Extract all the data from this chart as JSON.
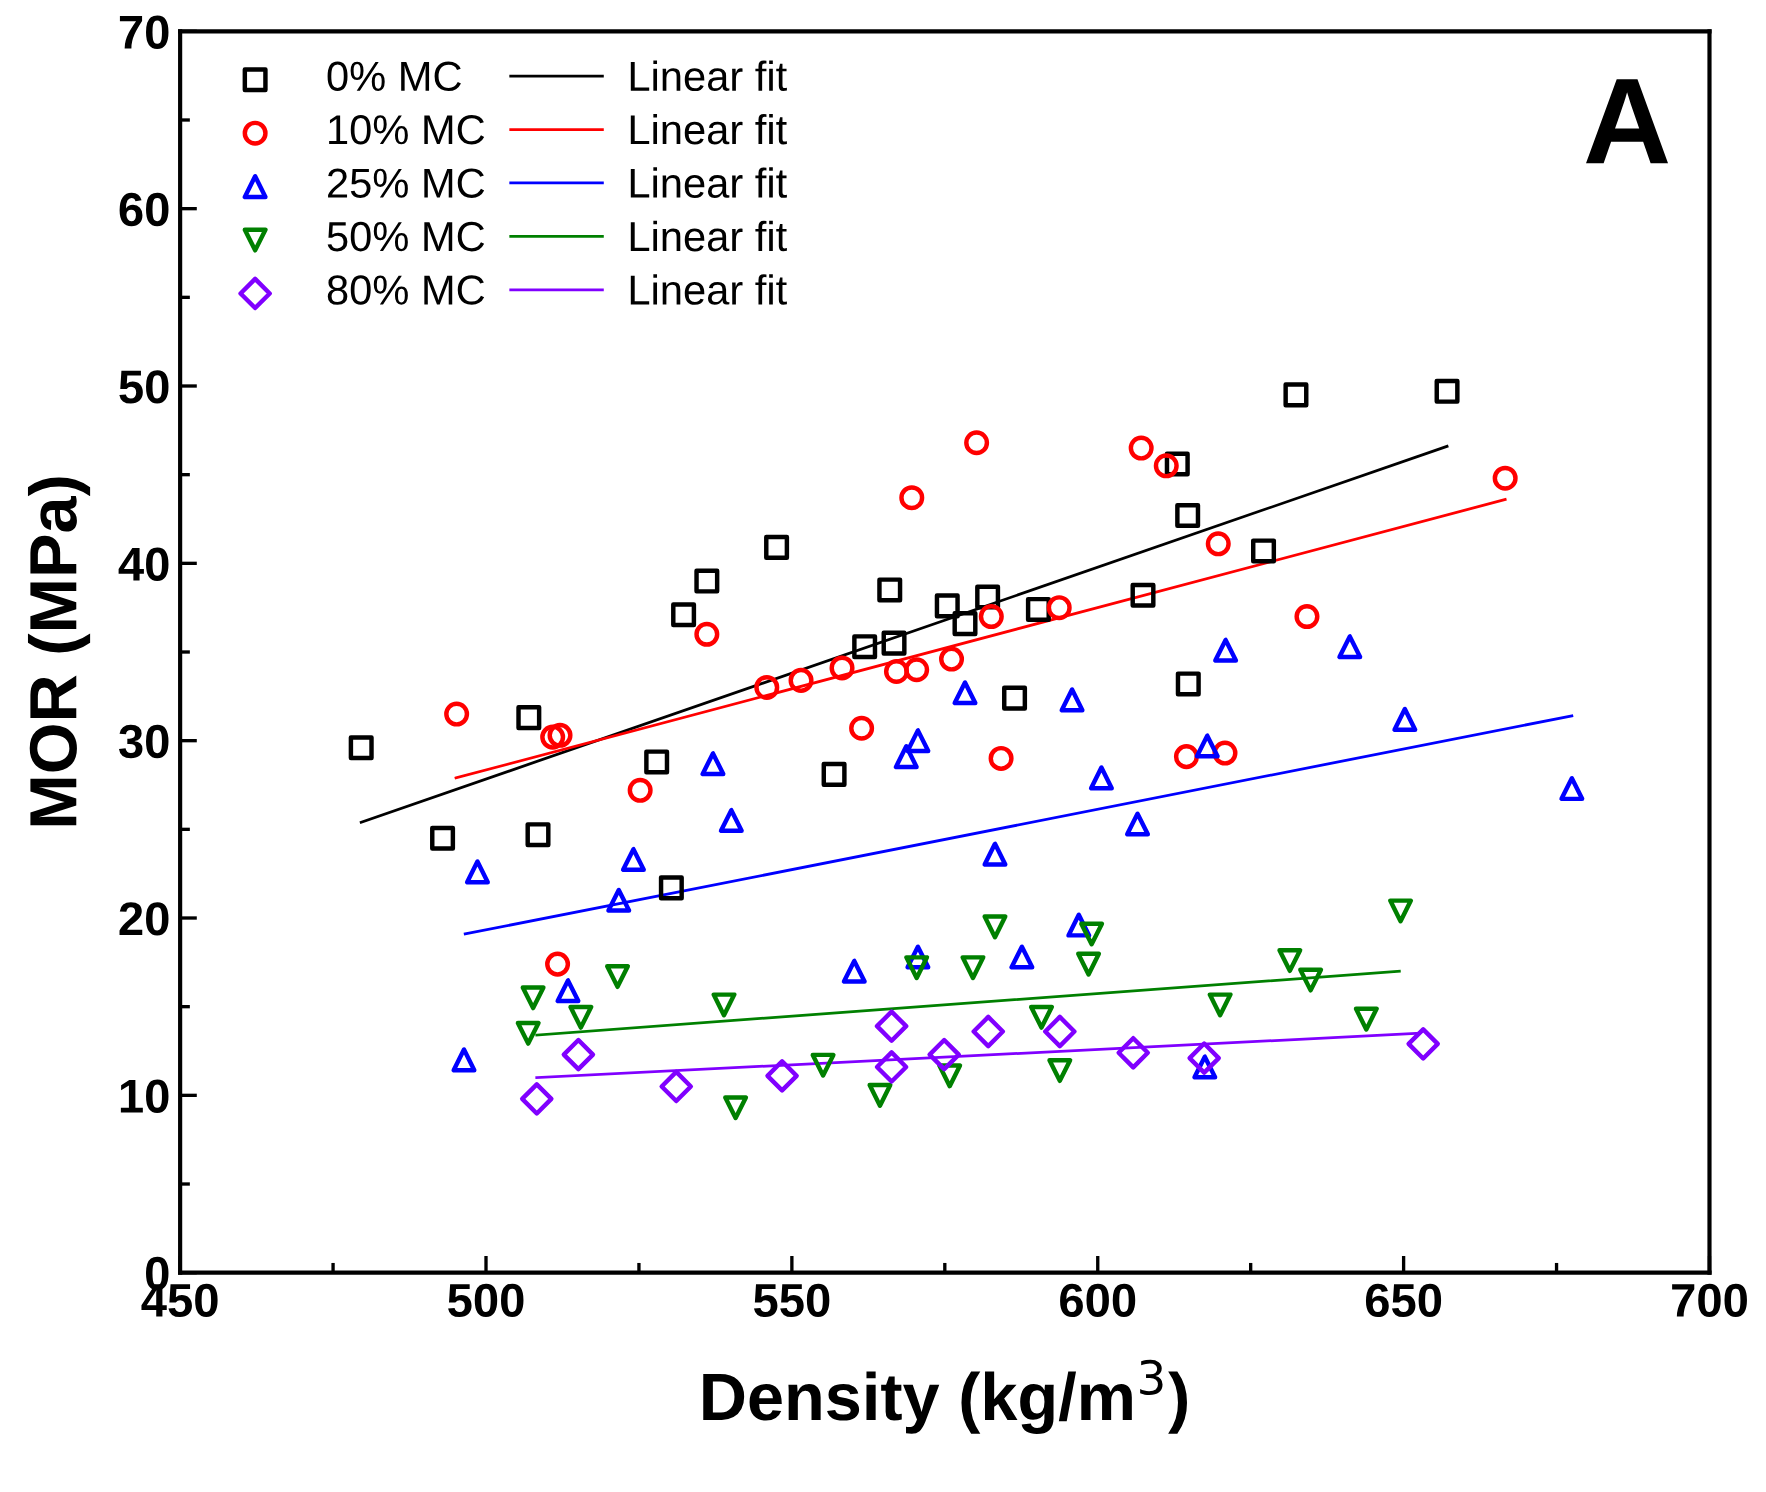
{
  "chart_data": {
    "type": "scatter",
    "xlabel": "Density (kg/m$^{3}$)",
    "ylabel": "MOR (MPa)",
    "annotations": [
      "A"
    ],
    "xlim": [
      450,
      700
    ],
    "xticks": [
      450,
      500,
      550,
      600,
      650,
      700
    ],
    "ylim": [
      0,
      70
    ],
    "yticks": [
      0,
      10,
      20,
      30,
      40,
      50,
      60,
      70
    ],
    "grid": false,
    "legend": "top left",
    "series": [
      {
        "name": "0% MC",
        "marker": "square",
        "color": "#000000",
        "x": [
          479.6,
          492.9,
          508.5,
          507.0,
          527.9,
          530.3,
          532.3,
          536.1,
          547.5,
          556.9,
          566.0,
          561.9,
          566.7,
          575.4,
          578.3,
          582.0,
          590.3,
          586.4,
          607.4,
          613.0,
          614.7,
          614.8,
          627.1,
          632.4,
          657.1
        ],
        "values": [
          29.6,
          24.5,
          24.7,
          31.3,
          28.8,
          21.7,
          37.1,
          39.0,
          40.9,
          28.1,
          38.5,
          35.3,
          35.5,
          37.6,
          36.6,
          38.1,
          37.4,
          32.4,
          38.2,
          45.6,
          42.7,
          33.2,
          40.7,
          49.5,
          49.7
        ]
      },
      {
        "name": "10% MC",
        "marker": "circle",
        "color": "#ff0000",
        "x": [
          495.2,
          510.9,
          512.1,
          536.1,
          525.2,
          545.9,
          551.5,
          558.2,
          561.4,
          567.1,
          570.4,
          569.6,
          580.2,
          576.1,
          582.6,
          593.7,
          584.2,
          607.1,
          611.2,
          619.7,
          634.2,
          614.5,
          620.8,
          666.6,
          511.7
        ],
        "values": [
          31.5,
          30.2,
          30.3,
          36.0,
          27.2,
          33.0,
          33.4,
          34.1,
          30.7,
          33.9,
          34.0,
          43.7,
          46.8,
          34.6,
          37.0,
          37.5,
          29.0,
          46.5,
          45.5,
          41.1,
          37.0,
          29.1,
          29.3,
          44.8,
          17.4
        ]
      },
      {
        "name": "25% MC",
        "marker": "triangle",
        "color": "#0000ff",
        "x": [
          498.6,
          524.1,
          521.7,
          537.1,
          540.1,
          568.7,
          570.6,
          578.3,
          595.8,
          600.6,
          606.5,
          583.2,
          620.9,
          641.2,
          650.2,
          617.9,
          677.5,
          513.4,
          496.4,
          560.2,
          570.6,
          587.6,
          596.9,
          617.5
        ],
        "values": [
          22.6,
          23.3,
          21.0,
          28.7,
          25.5,
          29.1,
          30.0,
          32.7,
          32.3,
          27.9,
          25.3,
          23.6,
          35.1,
          35.3,
          31.2,
          29.7,
          27.3,
          15.9,
          12.0,
          17.0,
          17.8,
          17.8,
          19.6,
          11.6
        ]
      },
      {
        "name": "50% MC",
        "marker": "triangle_down",
        "color": "#008000",
        "x": [
          507.7,
          506.9,
          515.5,
          521.5,
          538.9,
          540.8,
          555.1,
          564.4,
          570.4,
          579.6,
          583.2,
          590.8,
          593.8,
          599.0,
          598.5,
          620.0,
          631.4,
          634.8,
          643.9,
          649.5,
          575.8
        ],
        "values": [
          15.5,
          13.5,
          14.4,
          16.7,
          15.1,
          9.3,
          11.7,
          10.0,
          17.2,
          17.2,
          19.5,
          14.4,
          11.4,
          19.1,
          17.4,
          15.1,
          17.6,
          16.5,
          14.3,
          20.4,
          11.1
        ]
      },
      {
        "name": "80% MC",
        "marker": "diamond",
        "color": "#8000ff",
        "x": [
          508.3,
          515.1,
          531.1,
          548.4,
          566.3,
          566.3,
          574.9,
          582.1,
          593.8,
          605.8,
          617.4,
          653.2
        ],
        "values": [
          9.8,
          12.3,
          10.5,
          11.1,
          13.9,
          11.6,
          12.3,
          13.6,
          13.6,
          12.4,
          12.1,
          12.9
        ]
      },
      {
        "name": "Linear fit",
        "type": "line",
        "color": "#000000",
        "x": [
          479.6,
          657.1
        ],
        "values": [
          25.4,
          46.6
        ]
      },
      {
        "name": "Linear fit",
        "type": "line",
        "color": "#ff0000",
        "x": [
          495.1,
          666.6
        ],
        "values": [
          27.9,
          43.6
        ]
      },
      {
        "name": "Linear fit",
        "type": "line",
        "color": "#0000ff",
        "x": [
          496.6,
          677.5
        ],
        "values": [
          19.1,
          31.4
        ]
      },
      {
        "name": "Linear fit",
        "type": "line",
        "color": "#008000",
        "x": [
          508.3,
          649.3
        ],
        "values": [
          13.4,
          17.0
        ]
      },
      {
        "name": "Linear fit",
        "type": "line",
        "color": "#8000ff",
        "x": [
          508.3,
          652.6
        ],
        "values": [
          11.0,
          13.5
        ]
      }
    ]
  }
}
